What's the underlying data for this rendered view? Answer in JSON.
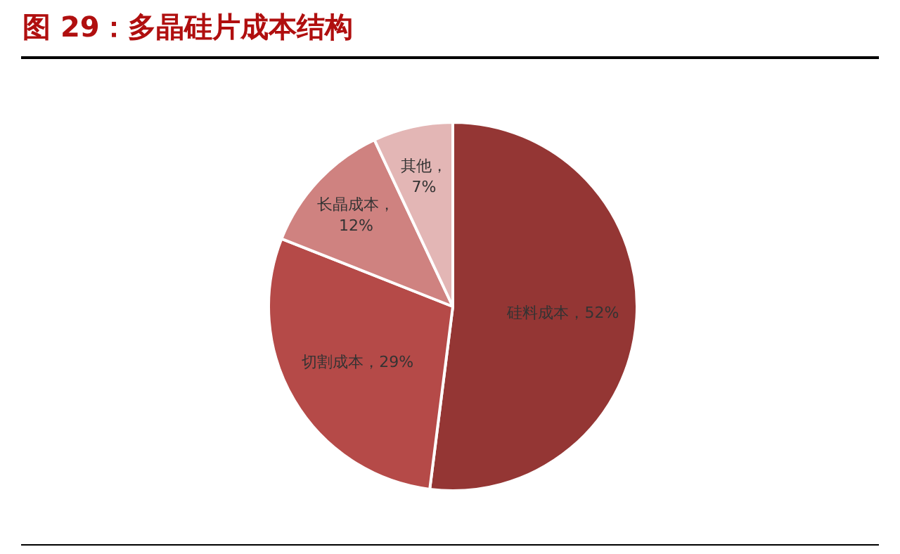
{
  "chart_data": {
    "type": "pie",
    "title": "图 29：多晶硅片成本结构",
    "categories": [
      "硅料成本",
      "切割成本",
      "长晶成本",
      "其他"
    ],
    "values": [
      52,
      29,
      12,
      7
    ],
    "colors": [
      "#943634",
      "#b54a48",
      "#cf8280",
      "#e3b6b5"
    ],
    "value_labels": [
      "，52%",
      "，29%",
      "，12%",
      "，7%"
    ],
    "legend": false
  }
}
